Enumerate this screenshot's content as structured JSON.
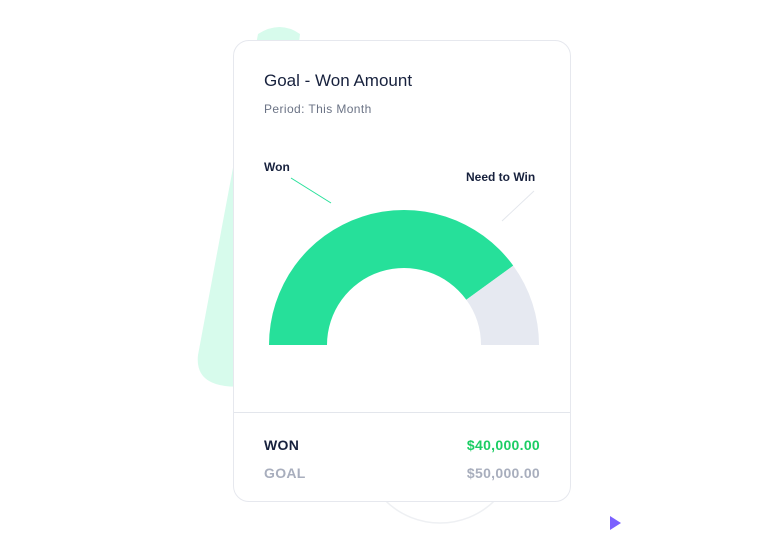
{
  "card": {
    "title": "Goal - Won Amount",
    "period": "Period: This Month"
  },
  "gauge": {
    "won_label": "Won",
    "need_label": "Need to Win",
    "won_value": 40000,
    "goal_value": 50000,
    "won_color": "#26e09a",
    "remaining_color": "#e6e9f1"
  },
  "summary": {
    "won_label": "WON",
    "won_amount": "$40,000.00",
    "goal_label": "GOAL",
    "goal_amount": "$50,000.00"
  },
  "colors": {
    "accent": "#1ccd64",
    "decor_mint": "#d7fbec",
    "decor_purple": "#7b61ff"
  }
}
